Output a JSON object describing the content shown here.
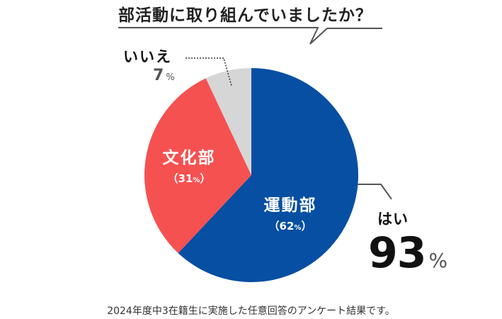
{
  "chart_data": {
    "type": "pie",
    "title": "部活動に取り組んでいましたか？",
    "categories": [
      "運動部",
      "文化部",
      "いいえ"
    ],
    "values": [
      62,
      31,
      7
    ],
    "colors": [
      "#064fa2",
      "#f65151",
      "#d6d6d6"
    ],
    "groups": [
      {
        "label": "はい",
        "value": 93,
        "includes": [
          "運動部",
          "文化部"
        ]
      },
      {
        "label": "いいえ",
        "value": 7
      }
    ],
    "unit": "%",
    "note": "2024年度中3在籍生に実施した任意回答のアンケート結果です。"
  },
  "title": "部活動に取り組んでいましたか？",
  "slices": {
    "sports": {
      "name": "運動部",
      "value": "62",
      "open": "（",
      "close": "）",
      "unit": "%"
    },
    "culture": {
      "name": "文化部",
      "value": "31",
      "open": "（",
      "close": "）",
      "unit": "%"
    },
    "no": {
      "name": "いいえ",
      "value": "7",
      "unit": "%"
    }
  },
  "yes": {
    "name": "はい",
    "value": "93",
    "unit": "%"
  },
  "footnote": "2024年度中3在籍生に実施した任意回答のアンケート結果です。"
}
